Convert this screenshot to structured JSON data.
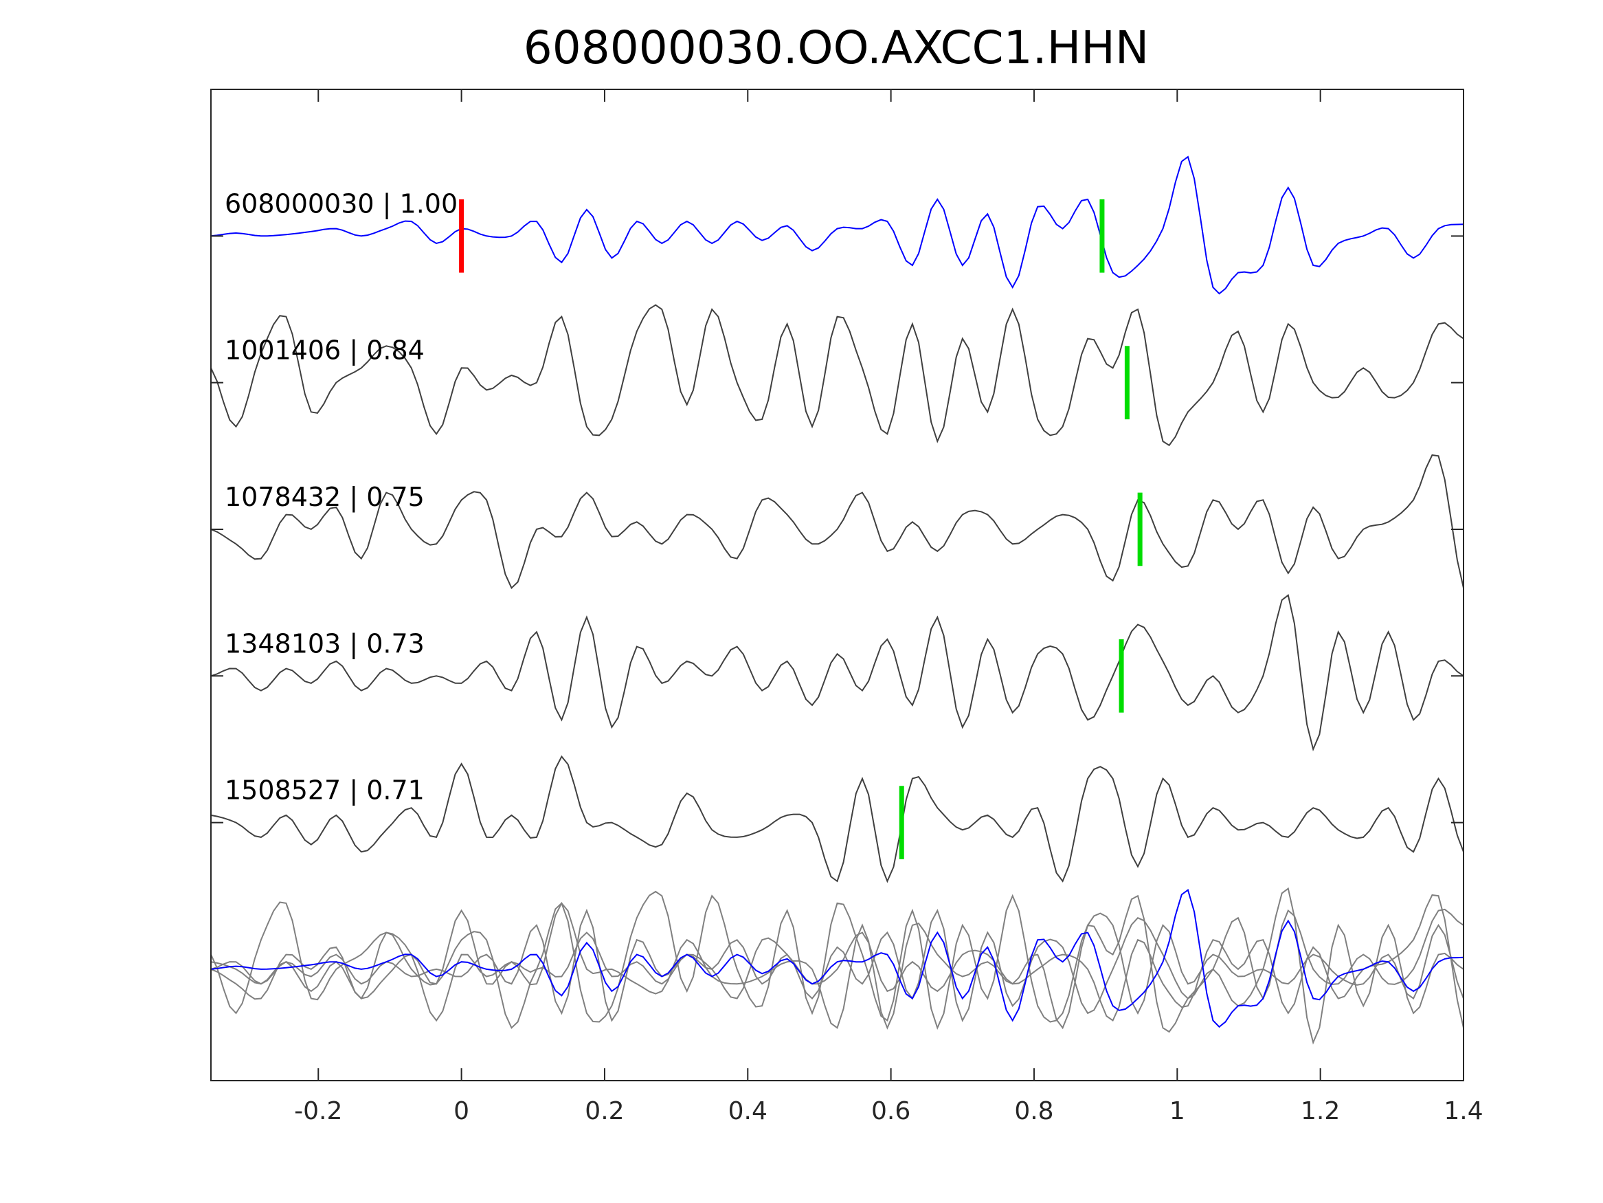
{
  "chart_data": {
    "type": "line",
    "title": "608000030.OO.AXCC1.HHN",
    "xlabel": "",
    "ylabel": "",
    "xlim": [
      -0.35,
      1.4
    ],
    "ylim": [
      -0.76,
      6.0
    ],
    "xticks": [
      -0.2,
      0,
      0.2,
      0.4,
      0.6,
      0.8,
      1,
      1.2,
      1.4
    ],
    "xtick_labels": [
      "-0.2",
      "0",
      "0.2",
      "0.4",
      "0.6",
      "0.8",
      "1",
      "1.2",
      "1.4"
    ],
    "grid": false,
    "x": [
      -0.35,
      -0.315,
      -0.28,
      -0.245,
      -0.21,
      -0.175,
      -0.14,
      -0.105,
      -0.07,
      -0.035,
      0,
      0.035,
      0.07,
      0.105,
      0.14,
      0.175,
      0.21,
      0.245,
      0.28,
      0.315,
      0.35,
      0.385,
      0.42,
      0.455,
      0.49,
      0.525,
      0.56,
      0.595,
      0.63,
      0.665,
      0.7,
      0.735,
      0.77,
      0.805,
      0.84,
      0.875,
      0.91,
      0.945,
      0.98,
      1.015,
      1.05,
      1.085,
      1.12,
      1.155,
      1.19,
      1.225,
      1.26,
      1.295,
      1.33,
      1.365,
      1.4
    ],
    "series": [
      {
        "name": "608000030",
        "label": "608000030 | 1.00",
        "offset": 5,
        "color": "#0000ff",
        "pick": 0.895,
        "origin_mark": 0,
        "values": [
          0,
          0.02,
          0,
          0.01,
          0.03,
          0.05,
          0,
          0.05,
          0.1,
          -0.05,
          0.05,
          0,
          0,
          0.1,
          -0.18,
          0.18,
          -0.15,
          0.1,
          -0.05,
          0.1,
          -0.05,
          0.1,
          -0.03,
          0.07,
          -0.1,
          0.05,
          0.05,
          0.1,
          -0.2,
          0.25,
          -0.2,
          0.15,
          -0.35,
          0.2,
          0.05,
          0.25,
          -0.25,
          -0.2,
          0.05,
          0.54,
          -0.35,
          -0.25,
          -0.2,
          0.33,
          -0.2,
          -0.05,
          0,
          0.05,
          -0.15,
          0.05,
          0.08
        ]
      },
      {
        "name": "1001406",
        "label": "1001406 | 0.84",
        "offset": 4,
        "color": "#404040",
        "pick": 0.93,
        "values": [
          0.1,
          -0.3,
          0.2,
          0.45,
          -0.2,
          0,
          0.1,
          0.25,
          0.1,
          -0.35,
          0.1,
          -0.05,
          0.05,
          0,
          0.45,
          -0.3,
          -0.25,
          0.35,
          0.5,
          -0.15,
          0.5,
          0,
          -0.25,
          0.4,
          -0.3,
          0.45,
          0.1,
          -0.35,
          0.4,
          -0.4,
          0.3,
          -0.2,
          0.5,
          -0.25,
          -0.3,
          0.3,
          0.1,
          0.5,
          -0.4,
          -0.2,
          0,
          0.35,
          -0.2,
          0.4,
          0,
          -0.1,
          0.1,
          -0.1,
          0,
          0.4,
          0.3
        ]
      },
      {
        "name": "1078432",
        "label": "1078432 | 0.75",
        "offset": 3,
        "color": "#404040",
        "pick": 0.948,
        "values": [
          0,
          -0.1,
          -0.2,
          0.1,
          0,
          0.15,
          -0.2,
          0.25,
          0,
          -0.1,
          0.2,
          0.2,
          -0.4,
          0,
          -0.05,
          0.25,
          -0.05,
          0.05,
          -0.1,
          0.1,
          0,
          -0.2,
          0.2,
          0.1,
          -0.1,
          0,
          0.25,
          -0.15,
          0.05,
          -0.15,
          0.1,
          0.1,
          -0.1,
          0,
          0.1,
          0,
          -0.35,
          0.2,
          -0.1,
          -0.25,
          0.2,
          0,
          0.2,
          -0.3,
          0.15,
          -0.2,
          0,
          0.05,
          0.2,
          0.5,
          -0.4
        ]
      },
      {
        "name": "1348103",
        "label": "1348103 | 0.73",
        "offset": 2,
        "color": "#404040",
        "pick": 0.922,
        "values": [
          0,
          0.05,
          -0.1,
          0.05,
          -0.05,
          0.1,
          -0.1,
          0.05,
          -0.05,
          0,
          -0.05,
          0.1,
          -0.1,
          0.3,
          -0.3,
          0.4,
          -0.35,
          0.2,
          -0.05,
          0.1,
          0,
          0.2,
          -0.1,
          0.1,
          -0.2,
          0.15,
          -0.1,
          0.25,
          -0.2,
          0.4,
          -0.35,
          0.25,
          -0.25,
          0.15,
          0.15,
          -0.3,
          0,
          0.35,
          0.1,
          -0.2,
          0,
          -0.25,
          0,
          0.55,
          -0.5,
          0.3,
          -0.25,
          0.3,
          -0.3,
          0.1,
          0
        ]
      },
      {
        "name": "1508527",
        "label": "1508527 | 0.71",
        "offset": 1,
        "color": "#404040",
        "pick": 0.615,
        "values": [
          0.05,
          0,
          -0.1,
          0.05,
          -0.15,
          0.05,
          -0.2,
          -0.05,
          0.1,
          -0.1,
          0.4,
          -0.1,
          0.05,
          -0.1,
          0.45,
          0,
          0,
          -0.1,
          -0.15,
          0.2,
          -0.05,
          -0.1,
          -0.05,
          0.05,
          0,
          -0.4,
          0.3,
          -0.4,
          0.3,
          0.1,
          -0.05,
          0.05,
          -0.1,
          0.1,
          -0.4,
          0.3,
          0.3,
          -0.3,
          0.3,
          -0.1,
          0.1,
          -0.05,
          0,
          -0.1,
          0.1,
          -0.05,
          -0.1,
          0.1,
          -0.2,
          0.3,
          -0.2
        ]
      }
    ],
    "stack_offset": 0,
    "stack_trace_color": "#808080",
    "origin_mark_color": "#ff0000",
    "pick_mark_color": "#00dd00"
  }
}
